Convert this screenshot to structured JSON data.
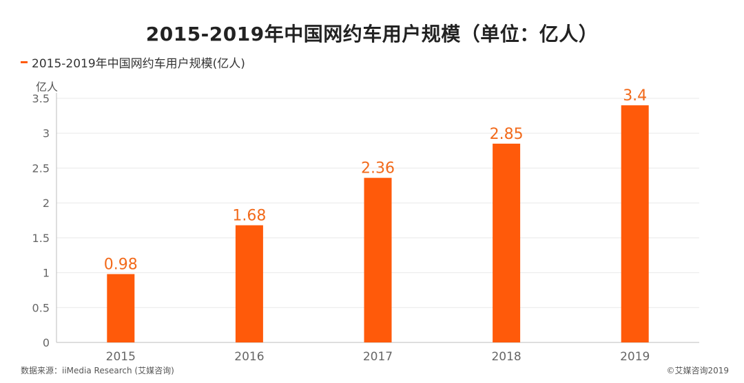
{
  "colors": {
    "bar": "#FF5A0A",
    "label": "#F26A1B",
    "grid": "#E8E8E8",
    "axis": "#BDBDBD"
  },
  "chart_data": {
    "type": "bar",
    "title": "2015-2019年中国网约车用户规模（单位：亿人）",
    "ylabel": "亿人",
    "categories": [
      "2015",
      "2016",
      "2017",
      "2018",
      "2019"
    ],
    "series": [
      {
        "name": "2015-2019年中国网约车用户规模(亿人)",
        "values": [
          0.98,
          1.68,
          2.36,
          2.85,
          3.4
        ]
      }
    ],
    "data_labels": [
      "0.98",
      "1.68",
      "2.36",
      "2.85",
      "3.4"
    ],
    "ylim": [
      0,
      3.5
    ],
    "yticks": [
      "0",
      "0.5",
      "1",
      "1.5",
      "2",
      "2.5",
      "3",
      "3.5"
    ],
    "grid": true,
    "legend": "top-left"
  },
  "footer": {
    "source": "数据来源：iiMedia Research (艾媒咨询)",
    "copyright": "©艾媒咨询2019"
  }
}
